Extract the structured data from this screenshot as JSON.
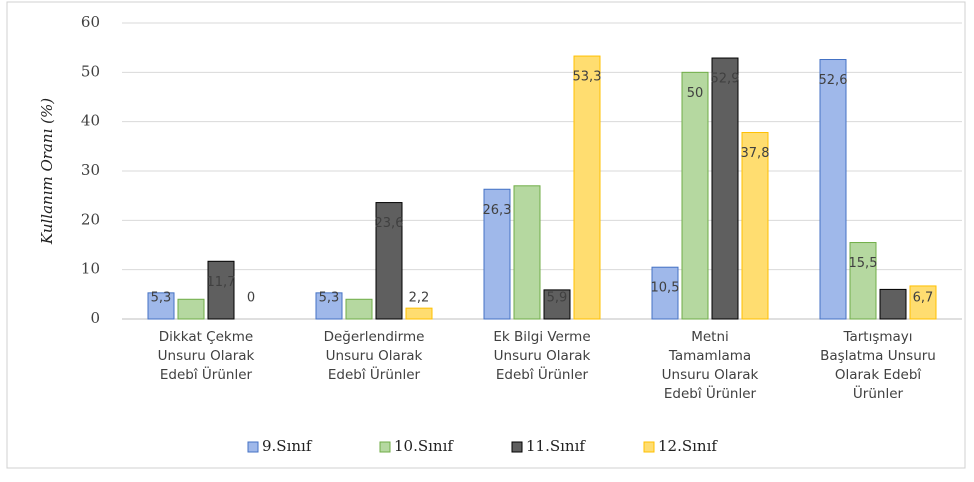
{
  "chart_data": {
    "type": "bar",
    "y_label": "Kullanım Oranı (%)",
    "categories": [
      "Dikkat Çekme\nUnsuru Olarak\nEdebî Ürünler",
      "Değerlendirme\nUnsuru Olarak\nEdebî Ürünler",
      "Ek Bilgi Verme\nUnsuru Olarak\nEdebî Ürünler",
      "Metni\nTamamlama\nUnsuru Olarak\nEdebî Ürünler",
      "Tartışmayı\nBaşlatma Unsuru\nOlarak Edebî\nÜrünler"
    ],
    "series": [
      {
        "name": "9.Sınıf",
        "color": "#9fb8ea",
        "border": "#4472c4",
        "values": [
          5.3,
          5.3,
          26.3,
          10.5,
          52.6
        ],
        "value_labels": [
          "5,3",
          "5,3",
          "26,3",
          "10,5",
          "52,6"
        ]
      },
      {
        "name": "10.Sınıf",
        "color": "#b5d8a0",
        "border": "#70ad47",
        "values": [
          4,
          4,
          27,
          50,
          15.5
        ],
        "value_labels": [
          null,
          null,
          null,
          "50",
          "15,5"
        ]
      },
      {
        "name": "11.Sınıf",
        "color": "#5f5f5f",
        "border": "#000000",
        "values": [
          11.7,
          23.6,
          5.9,
          52.9,
          6
        ],
        "value_labels": [
          "11,7",
          "23,6",
          "5,9",
          "52,9",
          null
        ]
      },
      {
        "name": "12.Sınıf",
        "color": "#ffdd70",
        "border": "#ffc000",
        "values": [
          0,
          2.2,
          53.3,
          37.8,
          6.7
        ],
        "value_labels": [
          "0",
          "2,2",
          "53,3",
          "37,8",
          "6,7"
        ]
      }
    ],
    "ylim": [
      0,
      60
    ],
    "yticks": [
      0,
      10,
      20,
      30,
      40,
      50,
      60
    ],
    "grid": true,
    "legend": "bottom"
  }
}
